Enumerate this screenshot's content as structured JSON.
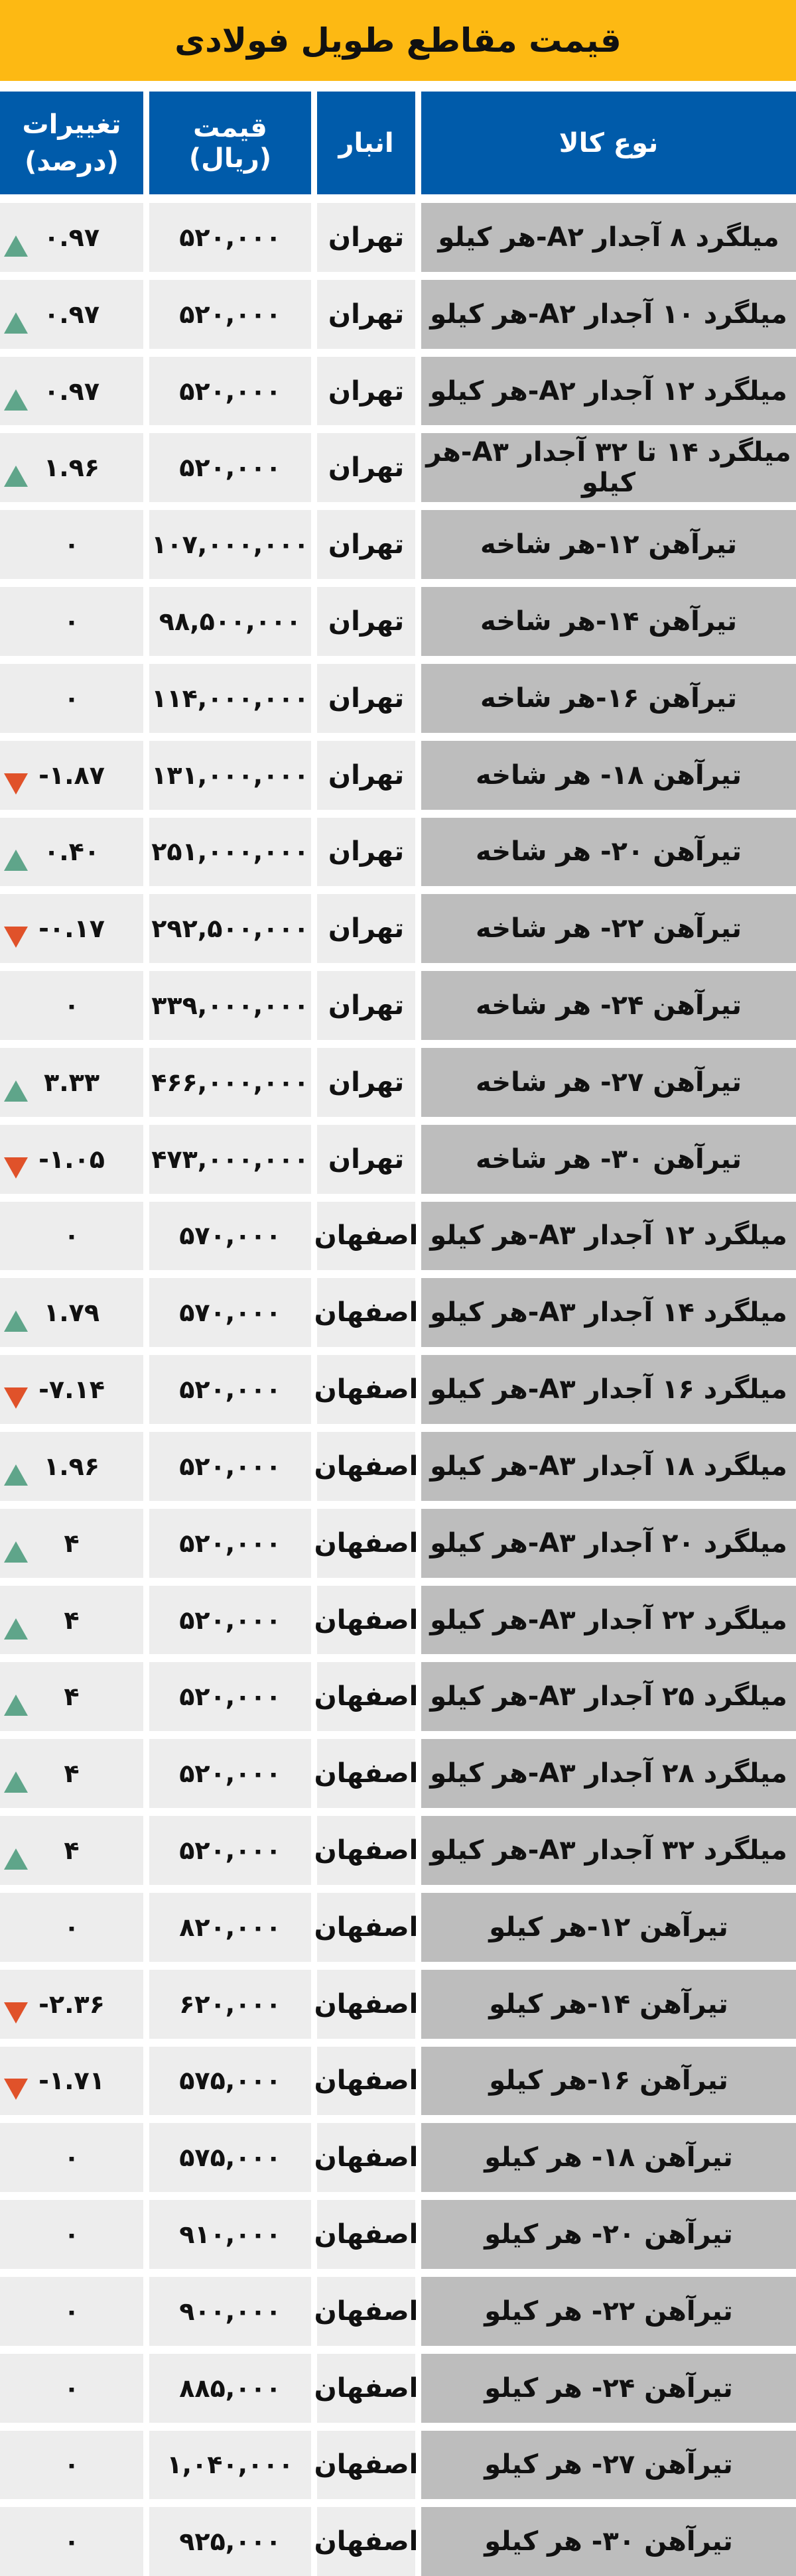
{
  "title": "قیمت مقاطع طویل فولادی",
  "colors": {
    "title_bg": "#FDB913",
    "header_bg": "#005BAA",
    "up": "#5FA58A",
    "down": "#E0522A"
  },
  "headers": {
    "name": "نوع کالا",
    "warehouse": "انبار",
    "price": "قیمت (ریال)",
    "change_line1": "تغییرات",
    "change_line2": "(درصد)"
  },
  "rows": [
    {
      "name": "میلگرد ۸ آجدار A۲-هر کیلو",
      "warehouse": "تهران",
      "price": "۵۲۰,۰۰۰",
      "change": "۰.۹۷",
      "dir": "up"
    },
    {
      "name": "میلگرد ۱۰ آجدار A۲-هر کیلو",
      "warehouse": "تهران",
      "price": "۵۲۰,۰۰۰",
      "change": "۰.۹۷",
      "dir": "up"
    },
    {
      "name": "میلگرد ۱۲ آجدار A۲-هر کیلو",
      "warehouse": "تهران",
      "price": "۵۲۰,۰۰۰",
      "change": "۰.۹۷",
      "dir": "up"
    },
    {
      "name": "میلگرد ۱۴ تا ۳۲ آجدار A۳-هر کیلو",
      "warehouse": "تهران",
      "price": "۵۲۰,۰۰۰",
      "change": "۱.۹۶",
      "dir": "up"
    },
    {
      "name": "تیرآهن ۱۲-هر شاخه",
      "warehouse": "تهران",
      "price": "۱۰۷,۰۰۰,۰۰۰",
      "change": "۰",
      "dir": "none"
    },
    {
      "name": "تیرآهن ۱۴-هر شاخه",
      "warehouse": "تهران",
      "price": "۹۸,۵۰۰,۰۰۰",
      "change": "۰",
      "dir": "none"
    },
    {
      "name": "تیرآهن ۱۶-هر شاخه",
      "warehouse": "تهران",
      "price": "۱۱۴,۰۰۰,۰۰۰",
      "change": "۰",
      "dir": "none"
    },
    {
      "name": "تیرآهن ۱۸- هر شاخه",
      "warehouse": "تهران",
      "price": "۱۳۱,۰۰۰,۰۰۰",
      "change": "-۱.۸۷",
      "dir": "down"
    },
    {
      "name": "تیرآهن ۲۰- هر شاخه",
      "warehouse": "تهران",
      "price": "۲۵۱,۰۰۰,۰۰۰",
      "change": "۰.۴۰",
      "dir": "up"
    },
    {
      "name": "تیرآهن ۲۲- هر شاخه",
      "warehouse": "تهران",
      "price": "۲۹۲,۵۰۰,۰۰۰",
      "change": "-۰.۱۷",
      "dir": "down"
    },
    {
      "name": "تیرآهن ۲۴- هر شاخه",
      "warehouse": "تهران",
      "price": "۳۳۹,۰۰۰,۰۰۰",
      "change": "۰",
      "dir": "none"
    },
    {
      "name": "تیرآهن ۲۷- هر شاخه",
      "warehouse": "تهران",
      "price": "۴۶۶,۰۰۰,۰۰۰",
      "change": "۳.۳۳",
      "dir": "up"
    },
    {
      "name": "تیرآهن ۳۰- هر شاخه",
      "warehouse": "تهران",
      "price": "۴۷۳,۰۰۰,۰۰۰",
      "change": "-۱.۰۵",
      "dir": "down"
    },
    {
      "name": "میلگرد ۱۲ آجدار A۳-هر کیلو",
      "warehouse": "اصفهان",
      "price": "۵۷۰,۰۰۰",
      "change": "۰",
      "dir": "none"
    },
    {
      "name": "میلگرد ۱۴ آجدار A۳-هر کیلو",
      "warehouse": "اصفهان",
      "price": "۵۷۰,۰۰۰",
      "change": "۱.۷۹",
      "dir": "up"
    },
    {
      "name": "میلگرد ۱۶ آجدار A۳-هر کیلو",
      "warehouse": "اصفهان",
      "price": "۵۲۰,۰۰۰",
      "change": "-۷.۱۴",
      "dir": "down"
    },
    {
      "name": "میلگرد ۱۸ آجدار A۳-هر کیلو",
      "warehouse": "اصفهان",
      "price": "۵۲۰,۰۰۰",
      "change": "۱.۹۶",
      "dir": "up"
    },
    {
      "name": "میلگرد ۲۰ آجدار A۳-هر کیلو",
      "warehouse": "اصفهان",
      "price": "۵۲۰,۰۰۰",
      "change": "۴",
      "dir": "up"
    },
    {
      "name": "میلگرد ۲۲ آجدار A۳-هر کیلو",
      "warehouse": "اصفهان",
      "price": "۵۲۰,۰۰۰",
      "change": "۴",
      "dir": "up"
    },
    {
      "name": "میلگرد ۲۵ آجدار A۳-هر کیلو",
      "warehouse": "اصفهان",
      "price": "۵۲۰,۰۰۰",
      "change": "۴",
      "dir": "up"
    },
    {
      "name": "میلگرد ۲۸ آجدار A۳-هر کیلو",
      "warehouse": "اصفهان",
      "price": "۵۲۰,۰۰۰",
      "change": "۴",
      "dir": "up"
    },
    {
      "name": "میلگرد ۳۲ آجدار A۳-هر کیلو",
      "warehouse": "اصفهان",
      "price": "۵۲۰,۰۰۰",
      "change": "۴",
      "dir": "up"
    },
    {
      "name": "تیرآهن ۱۲-هر کیلو",
      "warehouse": "اصفهان",
      "price": "۸۲۰,۰۰۰",
      "change": "۰",
      "dir": "none"
    },
    {
      "name": "تیرآهن ۱۴-هر کیلو",
      "warehouse": "اصفهان",
      "price": "۶۲۰,۰۰۰",
      "change": "-۲.۳۶",
      "dir": "down"
    },
    {
      "name": "تیرآهن ۱۶-هر کیلو",
      "warehouse": "اصفهان",
      "price": "۵۷۵,۰۰۰",
      "change": "-۱.۷۱",
      "dir": "down"
    },
    {
      "name": "تیرآهن ۱۸- هر کیلو",
      "warehouse": "اصفهان",
      "price": "۵۷۵,۰۰۰",
      "change": "۰",
      "dir": "none"
    },
    {
      "name": "تیرآهن ۲۰- هر کیلو",
      "warehouse": "اصفهان",
      "price": "۹۱۰,۰۰۰",
      "change": "۰",
      "dir": "none"
    },
    {
      "name": "تیرآهن ۲۲- هر کیلو",
      "warehouse": "اصفهان",
      "price": "۹۰۰,۰۰۰",
      "change": "۰",
      "dir": "none"
    },
    {
      "name": "تیرآهن ۲۴- هر کیلو",
      "warehouse": "اصفهان",
      "price": "۸۸۵,۰۰۰",
      "change": "۰",
      "dir": "none"
    },
    {
      "name": "تیرآهن ۲۷- هر کیلو",
      "warehouse": "اصفهان",
      "price": "۱,۰۴۰,۰۰۰",
      "change": "۰",
      "dir": "none"
    },
    {
      "name": "تیرآهن ۳۰- هر کیلو",
      "warehouse": "اصفهان",
      "price": "۹۲۵,۰۰۰",
      "change": "۰",
      "dir": "none"
    }
  ]
}
